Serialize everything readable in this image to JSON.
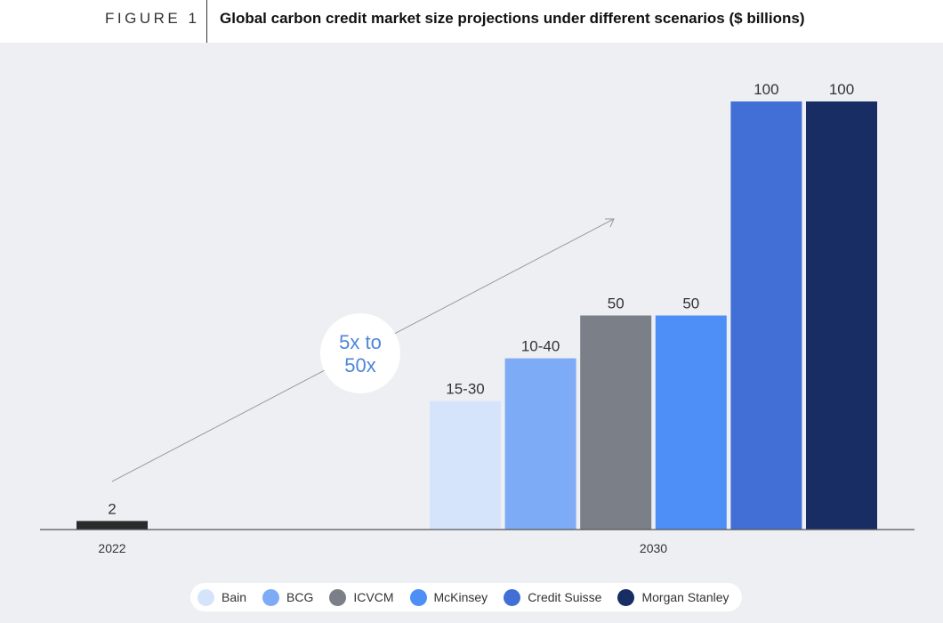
{
  "figure": {
    "label": "FIGURE 1",
    "title": "Global carbon credit market size projections under different scenarios ($ billions)"
  },
  "annotation": {
    "line1": "5x to",
    "line2": "50x"
  },
  "colors": {
    "panel_bg": "#eeeff3",
    "axis": "#555555",
    "annotation_text": "#4f86d9",
    "arrow": "#9a9a9a"
  },
  "chart_data": {
    "type": "bar",
    "title": "Global carbon credit market size projections under different scenarios ($ billions)",
    "xlabel": "",
    "ylabel": "",
    "ylim": [
      0,
      100
    ],
    "grid": false,
    "legend_position": "bottom",
    "groups": [
      {
        "label": "2022",
        "bars": [
          {
            "value": 2,
            "label": "2",
            "color": "#2b2b2b"
          }
        ]
      },
      {
        "label": "2030",
        "bars": [
          {
            "series": "Bain",
            "value": 30,
            "range": [
              15,
              30
            ],
            "label": "15-30",
            "color": "#d6e4fb"
          },
          {
            "series": "BCG",
            "value": 40,
            "range": [
              10,
              40
            ],
            "label": "10-40",
            "color": "#7eabf6"
          },
          {
            "series": "ICVCM",
            "value": 50,
            "label": "50",
            "color": "#7b7f87"
          },
          {
            "series": "McKinsey",
            "value": 50,
            "label": "50",
            "color": "#4e8ef7"
          },
          {
            "series": "Credit Suisse",
            "value": 100,
            "label": "100",
            "color": "#416fd6"
          },
          {
            "series": "Morgan Stanley",
            "value": 100,
            "label": "100",
            "color": "#172d63"
          }
        ]
      }
    ],
    "legend": [
      {
        "name": "Bain",
        "color": "#d6e4fb"
      },
      {
        "name": "BCG",
        "color": "#7eabf6"
      },
      {
        "name": "ICVCM",
        "color": "#7b7f87"
      },
      {
        "name": "McKinsey",
        "color": "#4e8ef7"
      },
      {
        "name": "Credit Suisse",
        "color": "#416fd6"
      },
      {
        "name": "Morgan Stanley",
        "color": "#172d63"
      }
    ]
  }
}
